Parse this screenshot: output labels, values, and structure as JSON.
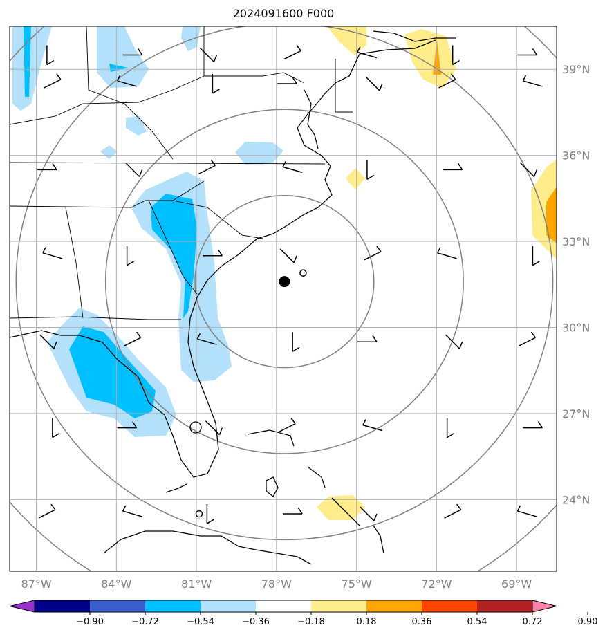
{
  "title": "2024091600 F000",
  "map": {
    "lon_range": [
      -88,
      -67.5
    ],
    "lat_range": [
      21.5,
      40.5
    ],
    "lon_ticks": [
      {
        "lon": -87,
        "label": "87°W"
      },
      {
        "lon": -84,
        "label": "84°W"
      },
      {
        "lon": -81,
        "label": "81°W"
      },
      {
        "lon": -78,
        "label": "78°W"
      },
      {
        "lon": -75,
        "label": "75°W"
      },
      {
        "lon": -72,
        "label": "72°W"
      },
      {
        "lon": -69,
        "label": "69°W"
      }
    ],
    "lat_ticks": [
      {
        "lat": 39,
        "label": "39°N"
      },
      {
        "lat": 36,
        "label": "36°N"
      },
      {
        "lat": 33,
        "label": "33°N"
      },
      {
        "lat": 30,
        "label": "30°N"
      },
      {
        "lat": 27,
        "label": "27°N"
      },
      {
        "lat": 24,
        "label": "24°N"
      }
    ],
    "storm_center": {
      "lon": -77.7,
      "lat": 31.6
    },
    "secondary_marker": {
      "lon": -77.0,
      "lat": 31.9
    },
    "small_marker": {
      "lon": -80.9,
      "lat": 23.5
    },
    "range_rings_deg": [
      3,
      6,
      9,
      12
    ]
  },
  "colorbar": {
    "levels": [
      "−0.90",
      "−0.72",
      "−0.54",
      "−0.36",
      "−0.18",
      "0.18",
      "0.36",
      "0.54",
      "0.72",
      "0.90"
    ],
    "colors": [
      "#9932cc",
      "#00008b",
      "#3a5fcd",
      "#00bfff",
      "#b0e0ff",
      "#ffffff",
      "#ffec8b",
      "#ffa500",
      "#ff4500",
      "#b22222",
      "#ff82ab"
    ]
  },
  "shading": {
    "neg_light": "#b3e0fa",
    "neg_mid": "#00bfff",
    "pos_light": "#ffec8b",
    "pos_mid": "#ffa500"
  }
}
